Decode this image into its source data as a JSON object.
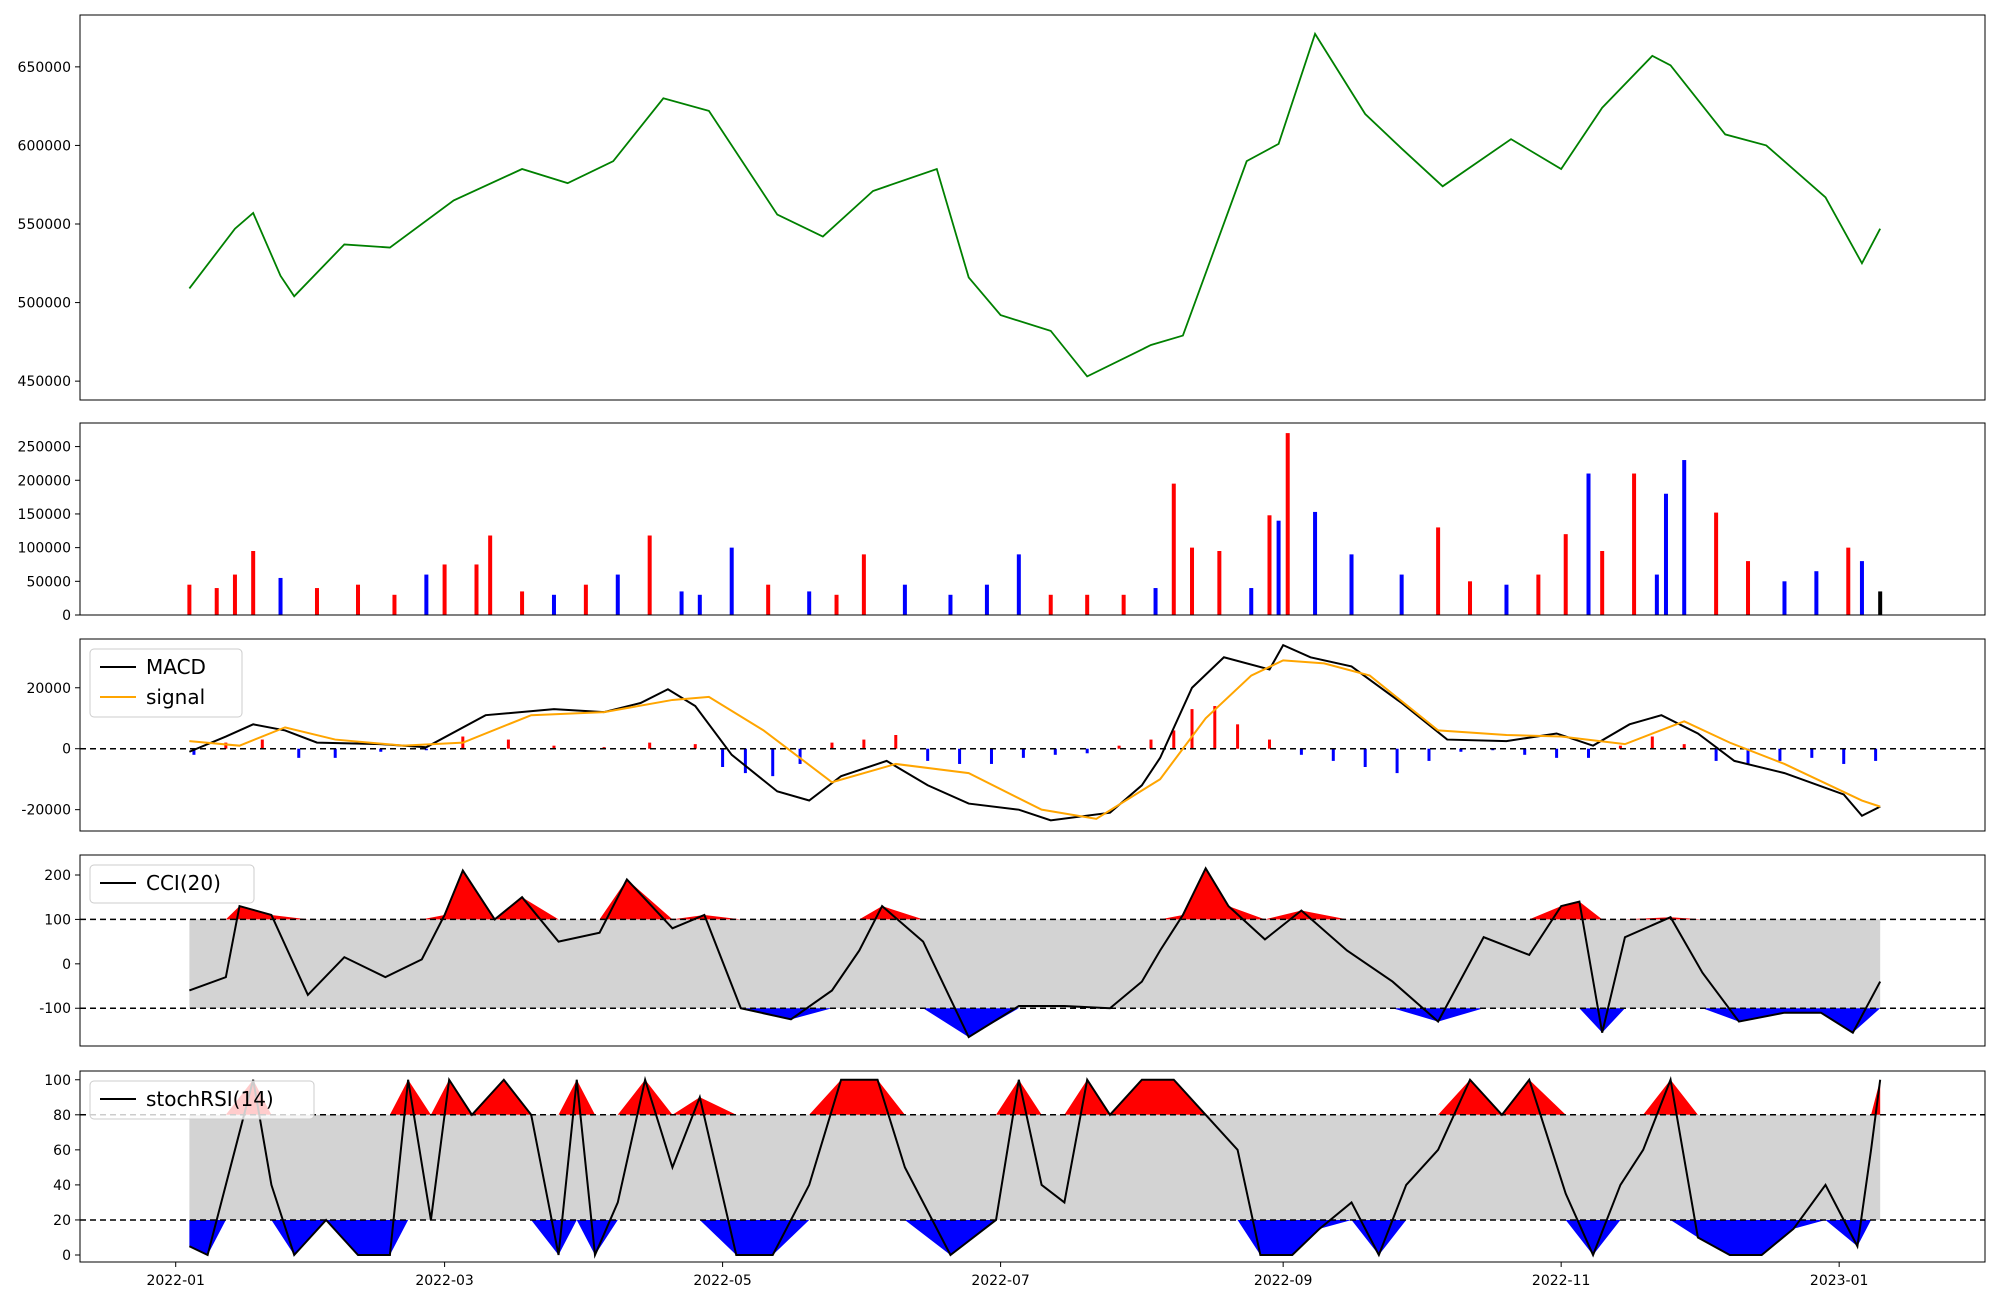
{
  "chart_data": [
    {
      "id": "price",
      "type": "line",
      "line_color": "#008000",
      "ylim": [
        438000,
        683000
      ],
      "yticks": [
        450000,
        500000,
        550000,
        600000,
        650000
      ],
      "x": [
        "2022-01-04",
        "2022-01-14",
        "2022-01-18",
        "2022-01-24",
        "2022-01-27",
        "2022-02-07",
        "2022-02-17",
        "2022-03-03",
        "2022-03-18",
        "2022-03-28",
        "2022-04-07",
        "2022-04-18",
        "2022-04-28",
        "2022-05-13",
        "2022-05-23",
        "2022-06-03",
        "2022-06-17",
        "2022-06-24",
        "2022-07-01",
        "2022-07-12",
        "2022-07-20",
        "2022-08-03",
        "2022-08-10",
        "2022-08-24",
        "2022-08-31",
        "2022-09-08",
        "2022-09-19",
        "2022-09-27",
        "2022-10-06",
        "2022-10-21",
        "2022-11-01",
        "2022-11-10",
        "2022-11-21",
        "2022-11-25",
        "2022-12-07",
        "2022-12-16",
        "2022-12-29",
        "2023-01-06",
        "2023-01-10"
      ],
      "values": [
        509000,
        547000,
        557000,
        517000,
        504000,
        537000,
        535000,
        565000,
        585000,
        576000,
        590000,
        630000,
        622000,
        556000,
        542000,
        571000,
        585000,
        516000,
        492000,
        482000,
        453000,
        473000,
        479000,
        590000,
        601000,
        671000,
        620000,
        598000,
        574000,
        604000,
        585000,
        624000,
        657000,
        651000,
        607000,
        600000,
        567000,
        525000,
        547000
      ]
    },
    {
      "id": "volume",
      "type": "bar",
      "ylim": [
        0,
        285000
      ],
      "yticks": [
        0,
        50000,
        100000,
        150000,
        200000,
        250000
      ],
      "colors": {
        "up": "#ff0000",
        "down": "#0000ff",
        "flat": "#000000"
      },
      "x": [
        "2022-01-04",
        "2022-01-10",
        "2022-01-14",
        "2022-01-18",
        "2022-01-24",
        "2022-02-01",
        "2022-02-10",
        "2022-02-18",
        "2022-02-25",
        "2022-03-01",
        "2022-03-08",
        "2022-03-11",
        "2022-03-18",
        "2022-03-25",
        "2022-04-01",
        "2022-04-08",
        "2022-04-15",
        "2022-04-22",
        "2022-04-26",
        "2022-05-03",
        "2022-05-11",
        "2022-05-20",
        "2022-05-26",
        "2022-06-01",
        "2022-06-10",
        "2022-06-20",
        "2022-06-28",
        "2022-07-05",
        "2022-07-12",
        "2022-07-20",
        "2022-07-28",
        "2022-08-04",
        "2022-08-08",
        "2022-08-12",
        "2022-08-18",
        "2022-08-25",
        "2022-08-29",
        "2022-08-31",
        "2022-09-02",
        "2022-09-08",
        "2022-09-16",
        "2022-09-27",
        "2022-10-05",
        "2022-10-12",
        "2022-10-20",
        "2022-10-27",
        "2022-11-02",
        "2022-11-07",
        "2022-11-10",
        "2022-11-17",
        "2022-11-22",
        "2022-11-24",
        "2022-11-28",
        "2022-12-05",
        "2022-12-12",
        "2022-12-20",
        "2022-12-27",
        "2023-01-03",
        "2023-01-06",
        "2023-01-10"
      ],
      "values": [
        45000,
        40000,
        60000,
        95000,
        55000,
        40000,
        45000,
        30000,
        60000,
        75000,
        75000,
        118000,
        35000,
        30000,
        45000,
        60000,
        118000,
        35000,
        30000,
        100000,
        45000,
        35000,
        30000,
        90000,
        45000,
        30000,
        45000,
        90000,
        30000,
        30000,
        30000,
        40000,
        195000,
        100000,
        95000,
        40000,
        148000,
        140000,
        270000,
        153000,
        90000,
        60000,
        130000,
        50000,
        45000,
        60000,
        120000,
        210000,
        95000,
        210000,
        60000,
        180000,
        230000,
        152000,
        80000,
        50000,
        65000,
        100000,
        80000,
        35000
      ],
      "directions": [
        "up",
        "up",
        "up",
        "up",
        "down",
        "up",
        "up",
        "up",
        "down",
        "up",
        "up",
        "up",
        "up",
        "down",
        "up",
        "down",
        "up",
        "down",
        "down",
        "down",
        "up",
        "down",
        "up",
        "up",
        "down",
        "down",
        "down",
        "down",
        "up",
        "up",
        "up",
        "down",
        "up",
        "up",
        "up",
        "down",
        "up",
        "down",
        "up",
        "down",
        "down",
        "down",
        "up",
        "up",
        "down",
        "up",
        "up",
        "down",
        "up",
        "up",
        "down",
        "down",
        "down",
        "up",
        "up",
        "down",
        "down",
        "up",
        "down",
        "flat"
      ]
    },
    {
      "id": "macd",
      "type": "line",
      "ylim": [
        -27000,
        36000
      ],
      "yticks": [
        -20000,
        0,
        20000
      ],
      "reference_lines": [
        0
      ],
      "legend": [
        "MACD",
        "signal"
      ],
      "series": [
        {
          "name": "MACD",
          "color": "#000000",
          "x": [
            "2022-01-04",
            "2022-01-12",
            "2022-01-18",
            "2022-01-25",
            "2022-02-01",
            "2022-02-15",
            "2022-02-25",
            "2022-03-10",
            "2022-03-25",
            "2022-04-05",
            "2022-04-13",
            "2022-04-19",
            "2022-04-25",
            "2022-05-03",
            "2022-05-13",
            "2022-05-20",
            "2022-05-27",
            "2022-06-06",
            "2022-06-15",
            "2022-06-24",
            "2022-07-05",
            "2022-07-12",
            "2022-07-25",
            "2022-08-01",
            "2022-08-05",
            "2022-08-12",
            "2022-08-19",
            "2022-08-29",
            "2022-09-01",
            "2022-09-07",
            "2022-09-16",
            "2022-09-27",
            "2022-10-07",
            "2022-10-20",
            "2022-10-31",
            "2022-11-08",
            "2022-11-16",
            "2022-11-23",
            "2022-12-01",
            "2022-12-09",
            "2022-12-20",
            "2023-01-02",
            "2023-01-06",
            "2023-01-10"
          ],
          "values": [
            -1000,
            4000,
            8000,
            6000,
            2000,
            1500,
            500,
            11000,
            13000,
            12000,
            15000,
            19500,
            14000,
            -2000,
            -14000,
            -17000,
            -9000,
            -4000,
            -12000,
            -18000,
            -20000,
            -23500,
            -21000,
            -12000,
            -3000,
            20000,
            30000,
            26000,
            34000,
            30000,
            27000,
            15000,
            3000,
            2500,
            5000,
            1000,
            8000,
            11000,
            5000,
            -4000,
            -8000,
            -15000,
            -22000,
            -19000
          ]
        },
        {
          "name": "signal",
          "color": "#ffa500",
          "x": [
            "2022-01-04",
            "2022-01-15",
            "2022-01-25",
            "2022-02-05",
            "2022-02-20",
            "2022-03-05",
            "2022-03-20",
            "2022-04-05",
            "2022-04-20",
            "2022-04-28",
            "2022-05-10",
            "2022-05-25",
            "2022-06-08",
            "2022-06-24",
            "2022-07-10",
            "2022-07-22",
            "2022-08-05",
            "2022-08-15",
            "2022-08-25",
            "2022-09-01",
            "2022-09-10",
            "2022-09-20",
            "2022-10-05",
            "2022-10-20",
            "2022-11-01",
            "2022-11-15",
            "2022-11-28",
            "2022-12-08",
            "2022-12-20",
            "2023-01-06",
            "2023-01-10"
          ],
          "values": [
            2500,
            1000,
            7000,
            3000,
            1000,
            2000,
            11000,
            12000,
            16000,
            17000,
            6000,
            -11000,
            -5000,
            -8000,
            -20000,
            -23000,
            -10000,
            10000,
            24000,
            29000,
            28000,
            24000,
            6000,
            4500,
            4000,
            1500,
            9000,
            2000,
            -5000,
            -17000,
            -19000
          ]
        }
      ],
      "hist_x": [
        "2022-01-05",
        "2022-01-12",
        "2022-01-20",
        "2022-01-28",
        "2022-02-05",
        "2022-02-15",
        "2022-02-25",
        "2022-03-05",
        "2022-03-15",
        "2022-03-25",
        "2022-04-05",
        "2022-04-15",
        "2022-04-25",
        "2022-05-01",
        "2022-05-06",
        "2022-05-12",
        "2022-05-18",
        "2022-05-25",
        "2022-06-01",
        "2022-06-08",
        "2022-06-15",
        "2022-06-22",
        "2022-06-29",
        "2022-07-06",
        "2022-07-13",
        "2022-07-20",
        "2022-07-27",
        "2022-08-03",
        "2022-08-08",
        "2022-08-12",
        "2022-08-17",
        "2022-08-22",
        "2022-08-29",
        "2022-09-05",
        "2022-09-12",
        "2022-09-19",
        "2022-09-26",
        "2022-10-03",
        "2022-10-10",
        "2022-10-17",
        "2022-10-24",
        "2022-10-31",
        "2022-11-07",
        "2022-11-14",
        "2022-11-21",
        "2022-11-28",
        "2022-12-05",
        "2022-12-12",
        "2022-12-19",
        "2022-12-26",
        "2023-01-02",
        "2023-01-09"
      ],
      "hist_values": [
        -2000,
        2000,
        3000,
        -3000,
        -3000,
        -1000,
        -500,
        4000,
        3000,
        1000,
        500,
        2000,
        1500,
        -6000,
        -8000,
        -9000,
        -5000,
        2000,
        3000,
        4500,
        -4000,
        -5000,
        -5000,
        -3000,
        -2000,
        -1500,
        1000,
        3000,
        6000,
        13000,
        14000,
        8000,
        3000,
        -2000,
        -4000,
        -6000,
        -8000,
        -4000,
        -1000,
        -500,
        -2000,
        -3000,
        -3000,
        1000,
        4000,
        1500,
        -4000,
        -5000,
        -4000,
        -3000,
        -5000,
        -4000
      ]
    },
    {
      "id": "cci",
      "type": "line",
      "line_color": "#000000",
      "ylim": [
        -185,
        245
      ],
      "yticks": [
        -100,
        0,
        100,
        200
      ],
      "reference_lines": [
        100,
        -100
      ],
      "band": [
        -100,
        100
      ],
      "legend": [
        "CCI(20)"
      ],
      "x": [
        "2022-01-04",
        "2022-01-12",
        "2022-01-15",
        "2022-01-22",
        "2022-01-30",
        "2022-02-07",
        "2022-02-16",
        "2022-02-24",
        "2022-03-01",
        "2022-03-05",
        "2022-03-12",
        "2022-03-18",
        "2022-03-26",
        "2022-04-04",
        "2022-04-10",
        "2022-04-20",
        "2022-04-27",
        "2022-05-05",
        "2022-05-16",
        "2022-05-25",
        "2022-05-31",
        "2022-06-05",
        "2022-06-14",
        "2022-06-24",
        "2022-07-05",
        "2022-07-15",
        "2022-07-25",
        "2022-08-01",
        "2022-08-05",
        "2022-08-10",
        "2022-08-15",
        "2022-08-20",
        "2022-08-28",
        "2022-09-05",
        "2022-09-15",
        "2022-09-25",
        "2022-10-05",
        "2022-10-15",
        "2022-10-25",
        "2022-11-01",
        "2022-11-05",
        "2022-11-10",
        "2022-11-15",
        "2022-11-25",
        "2022-12-02",
        "2022-12-10",
        "2022-12-20",
        "2022-12-28",
        "2023-01-04",
        "2023-01-10"
      ],
      "values": [
        -60,
        -30,
        130,
        110,
        -70,
        15,
        -30,
        10,
        110,
        210,
        100,
        150,
        50,
        70,
        190,
        80,
        110,
        -100,
        -125,
        -60,
        30,
        130,
        50,
        -165,
        -95,
        -95,
        -100,
        -40,
        30,
        110,
        215,
        130,
        55,
        120,
        30,
        -40,
        -130,
        60,
        20,
        130,
        140,
        -155,
        60,
        105,
        -20,
        -130,
        -110,
        -110,
        -155,
        -40
      ]
    },
    {
      "id": "stochrsi",
      "type": "line",
      "line_color": "#000000",
      "ylim": [
        -4,
        105
      ],
      "yticks": [
        0,
        20,
        40,
        60,
        80,
        100
      ],
      "reference_lines": [
        80,
        20
      ],
      "band": [
        20,
        80
      ],
      "legend": [
        "stochRSI(14)"
      ],
      "x": [
        "2022-01-04",
        "2022-01-08",
        "2022-01-12",
        "2022-01-18",
        "2022-01-22",
        "2022-01-27",
        "2022-02-03",
        "2022-02-10",
        "2022-02-17",
        "2022-02-21",
        "2022-02-26",
        "2022-03-02",
        "2022-03-07",
        "2022-03-14",
        "2022-03-20",
        "2022-03-26",
        "2022-03-30",
        "2022-04-03",
        "2022-04-08",
        "2022-04-14",
        "2022-04-20",
        "2022-04-26",
        "2022-05-04",
        "2022-05-12",
        "2022-05-20",
        "2022-05-27",
        "2022-06-04",
        "2022-06-10",
        "2022-06-20",
        "2022-06-30",
        "2022-07-05",
        "2022-07-10",
        "2022-07-15",
        "2022-07-20",
        "2022-07-25",
        "2022-08-01",
        "2022-08-08",
        "2022-08-15",
        "2022-08-22",
        "2022-08-27",
        "2022-09-03",
        "2022-09-09",
        "2022-09-16",
        "2022-09-22",
        "2022-09-28",
        "2022-10-05",
        "2022-10-12",
        "2022-10-19",
        "2022-10-25",
        "2022-11-02",
        "2022-11-08",
        "2022-11-14",
        "2022-11-19",
        "2022-11-25",
        "2022-12-01",
        "2022-12-08",
        "2022-12-15",
        "2022-12-22",
        "2022-12-29",
        "2023-01-05",
        "2023-01-08",
        "2023-01-10"
      ],
      "values": [
        5,
        0,
        40,
        100,
        40,
        0,
        20,
        0,
        0,
        100,
        20,
        100,
        80,
        100,
        80,
        0,
        100,
        0,
        30,
        100,
        50,
        90,
        0,
        0,
        40,
        100,
        100,
        50,
        0,
        20,
        100,
        40,
        30,
        100,
        80,
        100,
        100,
        80,
        60,
        0,
        0,
        15,
        30,
        0,
        40,
        60,
        100,
        80,
        100,
        35,
        0,
        40,
        60,
        100,
        10,
        0,
        0,
        15,
        40,
        5,
        60,
        100
      ]
    }
  ],
  "x_axis": {
    "tick_labels": [
      "2022-01",
      "2022-03",
      "2022-05",
      "2022-07",
      "2022-09",
      "2022-11",
      "2023-01"
    ],
    "tick_dates": [
      "2022-01-01",
      "2022-03-01",
      "2022-05-01",
      "2022-07-01",
      "2022-09-01",
      "2022-11-01",
      "2023-01-01"
    ],
    "range": [
      "2021-12-11",
      "2023-02-02"
    ]
  }
}
